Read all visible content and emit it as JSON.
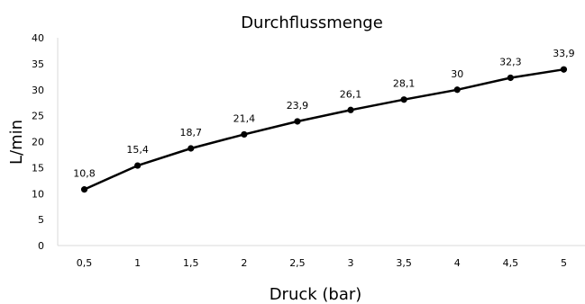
{
  "chart_data": {
    "type": "line",
    "title": "Durchflussmenge",
    "xlabel": "Druck (bar)",
    "ylabel": "L/min",
    "categories": [
      "0,5",
      "1",
      "1,5",
      "2",
      "2,5",
      "3",
      "3,5",
      "4",
      "4,5",
      "5"
    ],
    "series": [
      {
        "values": [
          10.8,
          15.4,
          18.7,
          21.4,
          23.9,
          26.1,
          28.1,
          30,
          32.3,
          33.9
        ],
        "labels": [
          "10,8",
          "15,4",
          "18,7",
          "21,4",
          "23,9",
          "26,1",
          "28,1",
          "30",
          "32,3",
          "33,9"
        ],
        "color": "#000000"
      }
    ],
    "ylim": [
      0,
      40
    ],
    "yticks": [
      "0",
      "5",
      "10",
      "15",
      "20",
      "25",
      "30",
      "35",
      "40"
    ],
    "grid": false,
    "legend": "none"
  }
}
